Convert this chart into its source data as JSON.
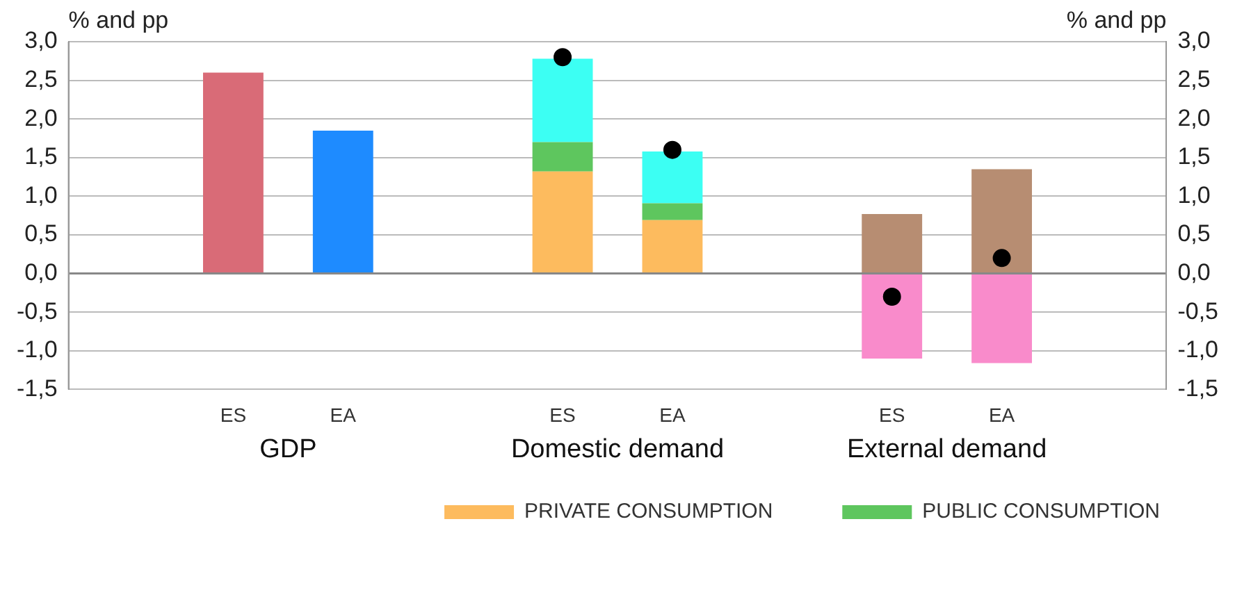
{
  "chart_data": {
    "type": "bar",
    "stacked": true,
    "categories": [
      null,
      "ES",
      "EA",
      null,
      "ES",
      "EA",
      null,
      "ES",
      "EA",
      null
    ],
    "ylabel": "% and pp",
    "y2label": "% and pp",
    "ylim": [
      -1.5,
      3.0
    ],
    "yticks": [
      {
        "value": -1.5,
        "label": "-1,5"
      },
      {
        "value": -1.0,
        "label": "-1,0"
      },
      {
        "value": -0.5,
        "label": "-0,5"
      },
      {
        "value": 0,
        "label": "0,0"
      },
      {
        "value": 0.5,
        "label": "0,5"
      },
      {
        "value": 1.0,
        "label": "1,0"
      },
      {
        "value": 1.5,
        "label": "1,5"
      },
      {
        "value": 2.0,
        "label": "2,0"
      },
      {
        "value": 2.5,
        "label": "2,5"
      },
      {
        "value": 3.0,
        "label": "3,0"
      }
    ],
    "y2lim": [
      -1.5,
      3.0
    ],
    "y2ticks": [
      {
        "value": -1.5,
        "label": "-1,5"
      },
      {
        "value": -1.0,
        "label": "-1,0"
      },
      {
        "value": -0.5,
        "label": "-0,5"
      },
      {
        "value": 0,
        "label": "0,0"
      },
      {
        "value": 0.5,
        "label": "0,5"
      },
      {
        "value": 1.0,
        "label": "1,0"
      },
      {
        "value": 1.5,
        "label": "1,5"
      },
      {
        "value": 2.0,
        "label": "2,0"
      },
      {
        "value": 2.5,
        "label": "2,5"
      },
      {
        "value": 3.0,
        "label": "3,0"
      }
    ],
    "grid": "y",
    "legend": "bottom right",
    "annotations": [
      "GDP",
      "Domestic demand",
      "External demand"
    ],
    "series": [
      {
        "color": "#d96b77",
        "values": [
          null,
          2.6,
          null,
          null,
          null,
          null,
          null,
          null,
          null,
          null
        ]
      },
      {
        "color": "#1e8bff",
        "values": [
          null,
          null,
          1.85,
          null,
          null,
          null,
          null,
          null,
          null,
          null
        ]
      },
      {
        "name": "PRIVATE CONSUMPTION",
        "color": "#fdbb5e",
        "values": [
          null,
          null,
          null,
          null,
          1.32,
          0.69,
          null,
          null,
          null,
          null
        ]
      },
      {
        "name": "PUBLIC CONSUMPTION",
        "color": "#5ec65e",
        "values": [
          null,
          null,
          null,
          null,
          0.38,
          0.22,
          null,
          null,
          null,
          null
        ]
      },
      {
        "color": "#3cfff3",
        "values": [
          null,
          null,
          null,
          null,
          1.08,
          0.67,
          null,
          null,
          null,
          null
        ]
      },
      {
        "color": "#b78d72",
        "values": [
          null,
          null,
          null,
          null,
          null,
          null,
          null,
          0.77,
          1.35,
          null
        ]
      },
      {
        "color": "#f98bcb",
        "values": [
          null,
          null,
          null,
          null,
          null,
          null,
          null,
          -1.1,
          -1.16,
          null
        ]
      },
      {
        "type": "scatter",
        "marker": "circle",
        "color": "#000000",
        "values": [
          null,
          null,
          null,
          null,
          2.8,
          1.6,
          null,
          -0.3,
          0.2,
          null
        ]
      }
    ]
  }
}
